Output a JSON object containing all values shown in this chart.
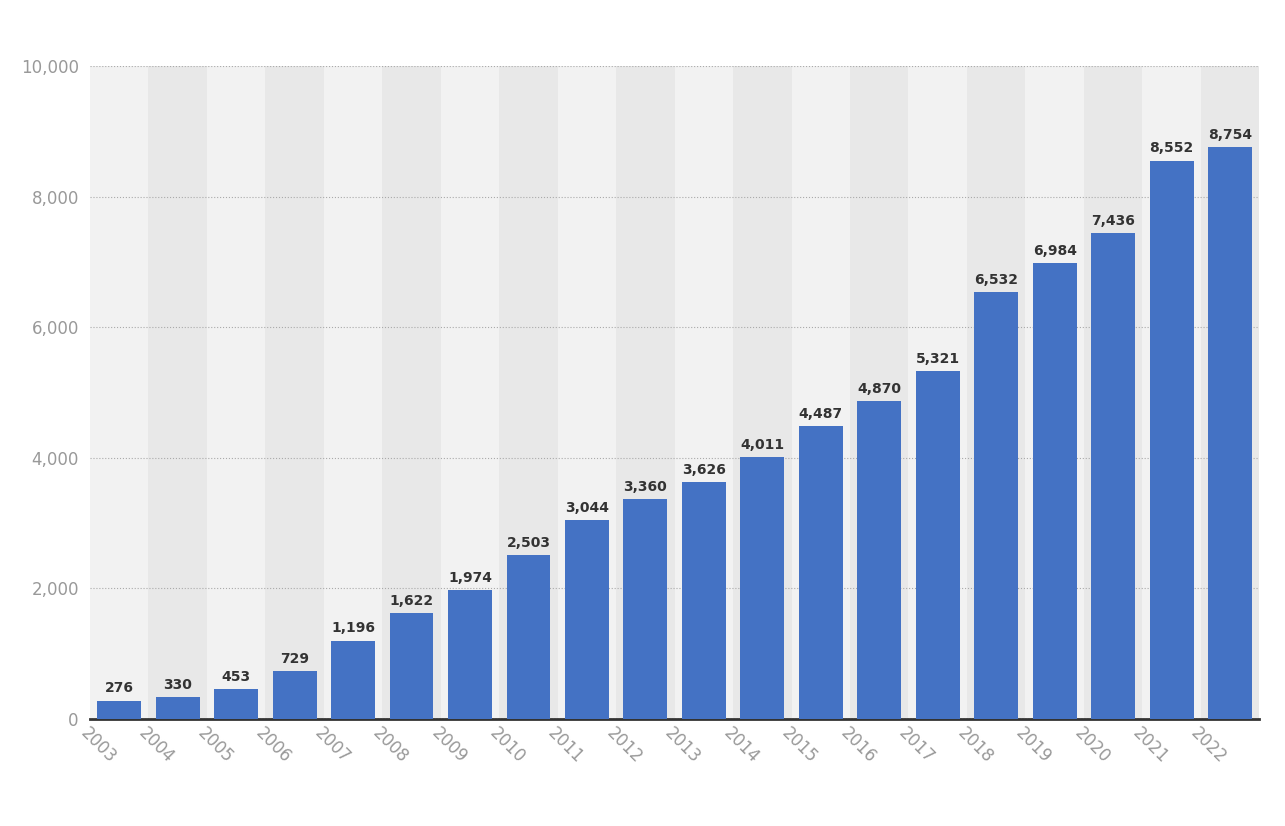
{
  "years": [
    "2003",
    "2004",
    "2005",
    "2006",
    "2007",
    "2008",
    "2009",
    "2010",
    "2011",
    "2012",
    "2013",
    "2014",
    "2015",
    "2016",
    "2017",
    "2018",
    "2019",
    "2020",
    "2021",
    "2022"
  ],
  "values": [
    276,
    330,
    453,
    729,
    1196,
    1622,
    1974,
    2503,
    3044,
    3360,
    3626,
    4011,
    4487,
    4870,
    5321,
    6532,
    6984,
    7436,
    8552,
    8754
  ],
  "bar_color": "#4472c4",
  "background_color": "#ffffff",
  "plot_bg_color_light": "#f2f2f2",
  "plot_bg_color_dark": "#e8e8e8",
  "grid_color": "#aaaaaa",
  "ylim": [
    0,
    10000
  ],
  "yticks": [
    0,
    2000,
    4000,
    6000,
    8000,
    10000
  ],
  "tick_label_color": "#999999",
  "bar_label_color": "#333333",
  "xlabel_rotation": -45,
  "value_labels": [
    "276",
    "330",
    "453",
    "729",
    "1,196",
    "1,622",
    "1,974",
    "2,503",
    "3,044",
    "3,360",
    "3,626",
    "4,011",
    "4,487",
    "4,870",
    "5,321",
    "6,532",
    "6,984",
    "7,436",
    "8,552",
    "8,754"
  ]
}
